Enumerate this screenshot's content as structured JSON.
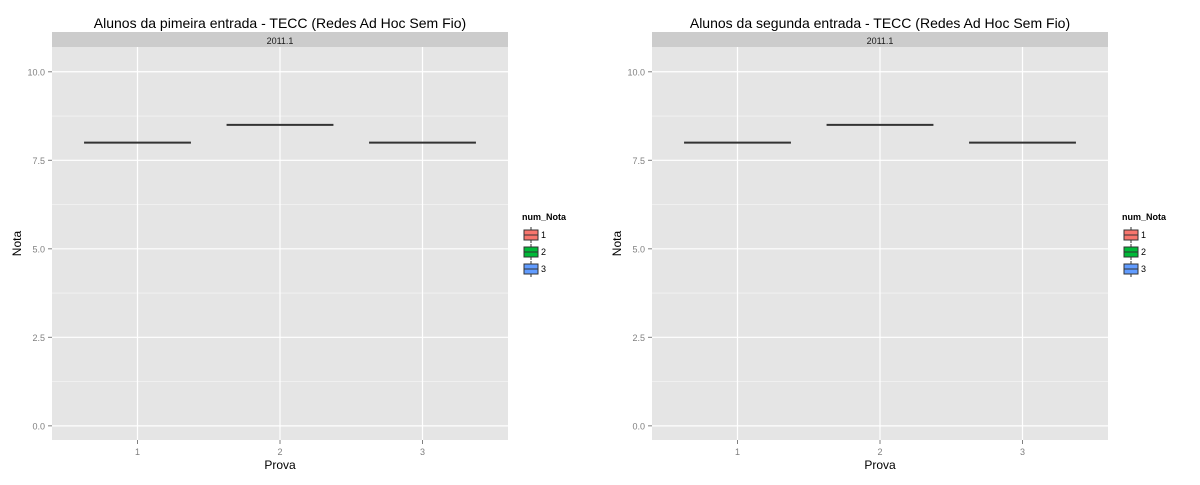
{
  "chart_data": [
    {
      "type": "boxplot",
      "title": "Alunos da pimeira entrada -  TECC (Redes Ad Hoc Sem Fio)",
      "facet_label": "2011.1",
      "xlabel": "Prova",
      "ylabel": "Nota",
      "categories": [
        "1",
        "2",
        "3"
      ],
      "values": [
        8.0,
        8.5,
        8.0
      ],
      "y_ticks": [
        "0.0",
        "2.5",
        "5.0",
        "7.5",
        "10.0"
      ],
      "ylim": [
        -0.4,
        10.7
      ],
      "legend": {
        "title": "num_Nota",
        "entries": [
          {
            "label": "1",
            "color": "#f8766d"
          },
          {
            "label": "2",
            "color": "#00ba38"
          },
          {
            "label": "3",
            "color": "#619cff"
          }
        ]
      }
    },
    {
      "type": "boxplot",
      "title": "Alunos da segunda entrada -  TECC (Redes Ad Hoc Sem Fio)",
      "facet_label": "2011.1",
      "xlabel": "Prova",
      "ylabel": "Nota",
      "categories": [
        "1",
        "2",
        "3"
      ],
      "values": [
        8.0,
        8.5,
        8.0
      ],
      "y_ticks": [
        "0.0",
        "2.5",
        "5.0",
        "7.5",
        "10.0"
      ],
      "ylim": [
        -0.4,
        10.7
      ],
      "legend": {
        "title": "num_Nota",
        "entries": [
          {
            "label": "1",
            "color": "#f8766d"
          },
          {
            "label": "2",
            "color": "#00ba38"
          },
          {
            "label": "3",
            "color": "#619cff"
          }
        ]
      }
    }
  ]
}
